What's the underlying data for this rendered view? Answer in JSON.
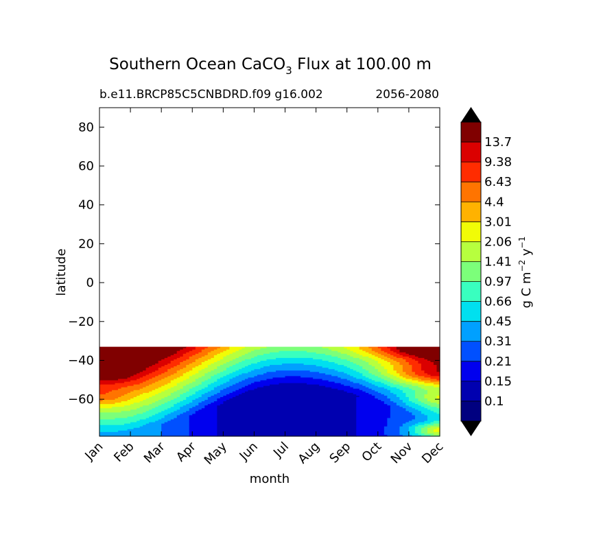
{
  "chart_data": {
    "type": "heatmap",
    "title": "Southern Ocean CaCO",
    "title_sub": "3",
    "title_rest": " Flux at 100.00 m",
    "subtitle_left": "b.e11.BRCP85C5CNBDRD.f09 g16.002",
    "subtitle_right": "2056-2080",
    "xlabel": "month",
    "ylabel": "latitude",
    "x_ticks": [
      "Jan",
      "Feb",
      "Mar",
      "Apr",
      "May",
      "Jun",
      "Jul",
      "Aug",
      "Sep",
      "Oct",
      "Nov",
      "Dec"
    ],
    "y_ticks": [
      80,
      60,
      40,
      20,
      0,
      -20,
      -40,
      -60
    ],
    "ylim": [
      -79,
      90
    ],
    "data_lat_range": [
      -79,
      -33
    ],
    "colorbar": {
      "label": "g C m",
      "label_sup1": "−2",
      "label_mid": " y",
      "label_sup2": "−1",
      "levels": [
        "0.1",
        "0.15",
        "0.21",
        "0.31",
        "0.45",
        "0.66",
        "0.97",
        "1.41",
        "2.06",
        "3.01",
        "4.4",
        "6.43",
        "9.38",
        "13.7"
      ],
      "colors": [
        "#000080",
        "#0000b0",
        "#0000ee",
        "#0050ff",
        "#00a0ff",
        "#00e0ef",
        "#39ffbf",
        "#7cff7a",
        "#b7ff3e",
        "#f1fc06",
        "#ffb200",
        "#ff7400",
        "#ff2c00",
        "#db0000",
        "#800000"
      ],
      "extend": "both"
    }
  }
}
